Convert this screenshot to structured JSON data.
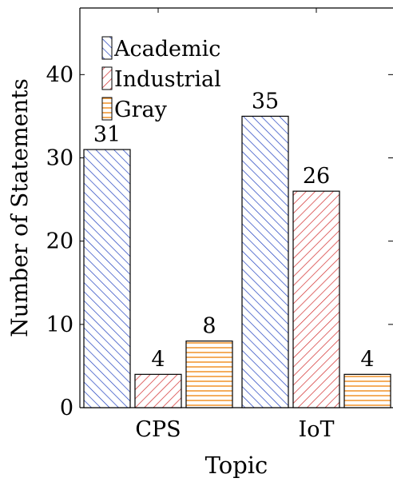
{
  "chart_data": {
    "type": "bar",
    "categories": [
      "CPS",
      "IoT"
    ],
    "series": [
      {
        "name": "Academic",
        "values": [
          31,
          35
        ],
        "color": "#1f3fbf",
        "pattern": "diagonal-backslash"
      },
      {
        "name": "Industrial",
        "values": [
          4,
          26
        ],
        "color": "#d22b2b",
        "pattern": "diagonal-slash"
      },
      {
        "name": "Gray",
        "values": [
          8,
          4
        ],
        "color": "#f08a1a",
        "pattern": "horizontal-lines"
      }
    ],
    "xlabel": "Topic",
    "ylabel": "Number of Statements",
    "ylim": [
      0,
      48
    ],
    "yticks": [
      0,
      10,
      20,
      30,
      40
    ],
    "legend_position": "top-left",
    "grid": false
  }
}
